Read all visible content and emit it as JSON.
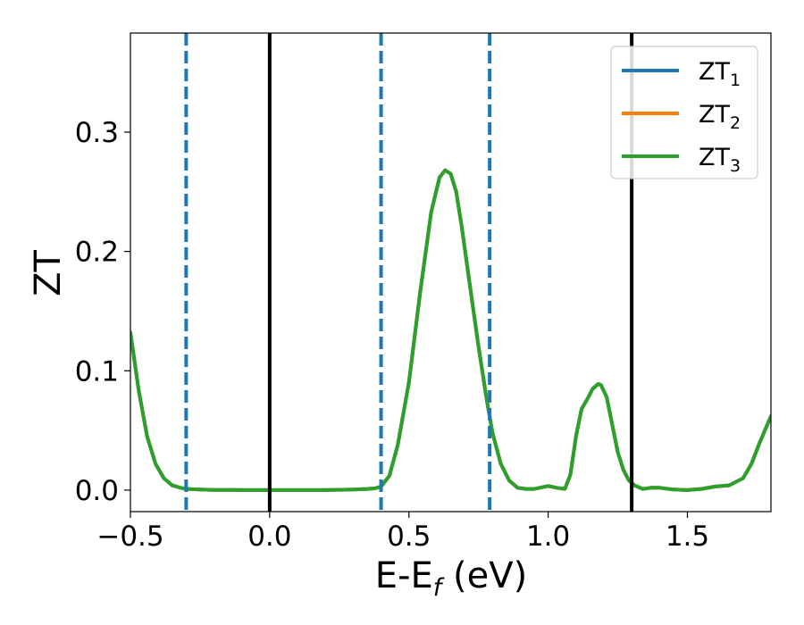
{
  "chart_data": {
    "type": "line",
    "title": "",
    "xlabel": {
      "main": "E-E",
      "sub": "f",
      "tail": " (eV)"
    },
    "ylabel": "ZT",
    "xlim": [
      -0.5,
      1.8
    ],
    "ylim": [
      -0.018,
      0.383
    ],
    "xticks": [
      {
        "value": -0.5,
        "label": "−0.5"
      },
      {
        "value": 0.0,
        "label": "0.0"
      },
      {
        "value": 0.5,
        "label": "0.5"
      },
      {
        "value": 1.0,
        "label": "1.0"
      },
      {
        "value": 1.5,
        "label": "1.5"
      }
    ],
    "yticks": [
      {
        "value": 0.0,
        "label": "0.0"
      },
      {
        "value": 0.1,
        "label": "0.1"
      },
      {
        "value": 0.2,
        "label": "0.2"
      },
      {
        "value": 0.3,
        "label": "0.3"
      }
    ],
    "grid": false,
    "legend_position": "top-right",
    "series": [
      {
        "name": "ZT",
        "sub": "1",
        "color": "#1f77b4",
        "x": [
          -0.5,
          -0.47,
          -0.44,
          -0.41,
          -0.38,
          -0.35,
          -0.32,
          -0.3,
          -0.25,
          -0.2,
          -0.1,
          0,
          0.1,
          0.2,
          0.3,
          0.35,
          0.38,
          0.4,
          0.43,
          0.46,
          0.5,
          0.54,
          0.58,
          0.61,
          0.63,
          0.65,
          0.67,
          0.69,
          0.72,
          0.75,
          0.78,
          0.8,
          0.83,
          0.86,
          0.89,
          0.92,
          0.95,
          0.97,
          1.0,
          1.03,
          1.06,
          1.08,
          1.1,
          1.12,
          1.14,
          1.16,
          1.18,
          1.19,
          1.21,
          1.23,
          1.25,
          1.27,
          1.29,
          1.31,
          1.34,
          1.37,
          1.4,
          1.45,
          1.5,
          1.55,
          1.6,
          1.65,
          1.7,
          1.73,
          1.76,
          1.8
        ],
        "y": [
          0.132,
          0.083,
          0.045,
          0.022,
          0.01,
          0.004,
          0.002,
          0.001,
          0.0005,
          0.0002,
          0,
          0,
          0,
          0,
          0.0005,
          0.001,
          0.0015,
          0.003,
          0.012,
          0.038,
          0.09,
          0.165,
          0.233,
          0.262,
          0.268,
          0.265,
          0.25,
          0.22,
          0.17,
          0.12,
          0.075,
          0.048,
          0.022,
          0.008,
          0.002,
          0.001,
          0.001,
          0.002,
          0.0035,
          0.002,
          0.001,
          0.013,
          0.045,
          0.068,
          0.076,
          0.085,
          0.089,
          0.088,
          0.078,
          0.055,
          0.032,
          0.017,
          0.008,
          0.004,
          0.001,
          0.002,
          0.002,
          0.0005,
          0,
          0.001,
          0.003,
          0.004,
          0.01,
          0.022,
          0.04,
          0.062
        ]
      },
      {
        "name": "ZT",
        "sub": "2",
        "color": "#ff7f0e",
        "x": [
          -0.5,
          -0.47,
          -0.44,
          -0.41,
          -0.38,
          -0.35,
          -0.32,
          -0.3,
          -0.25,
          -0.2,
          -0.1,
          0,
          0.1,
          0.2,
          0.3,
          0.35,
          0.38,
          0.4,
          0.43,
          0.46,
          0.5,
          0.54,
          0.58,
          0.61,
          0.63,
          0.65,
          0.67,
          0.69,
          0.72,
          0.75,
          0.78,
          0.8,
          0.83,
          0.86,
          0.89,
          0.92,
          0.95,
          0.97,
          1.0,
          1.03,
          1.06,
          1.08,
          1.1,
          1.12,
          1.14,
          1.16,
          1.18,
          1.19,
          1.21,
          1.23,
          1.25,
          1.27,
          1.29,
          1.31,
          1.34,
          1.37,
          1.4,
          1.45,
          1.5,
          1.55,
          1.6,
          1.65,
          1.7,
          1.73,
          1.76,
          1.8
        ],
        "y": [
          0.132,
          0.083,
          0.045,
          0.022,
          0.01,
          0.004,
          0.002,
          0.001,
          0.0005,
          0.0002,
          0,
          0,
          0,
          0,
          0.0005,
          0.001,
          0.0015,
          0.003,
          0.012,
          0.038,
          0.09,
          0.165,
          0.233,
          0.262,
          0.268,
          0.265,
          0.25,
          0.22,
          0.17,
          0.12,
          0.075,
          0.048,
          0.022,
          0.008,
          0.002,
          0.001,
          0.001,
          0.002,
          0.0035,
          0.002,
          0.001,
          0.013,
          0.045,
          0.068,
          0.076,
          0.085,
          0.089,
          0.088,
          0.078,
          0.055,
          0.032,
          0.017,
          0.008,
          0.004,
          0.001,
          0.002,
          0.002,
          0.0005,
          0,
          0.001,
          0.003,
          0.004,
          0.01,
          0.022,
          0.04,
          0.062
        ]
      },
      {
        "name": "ZT",
        "sub": "3",
        "color": "#2ca02c",
        "x": [
          -0.5,
          -0.47,
          -0.44,
          -0.41,
          -0.38,
          -0.35,
          -0.32,
          -0.3,
          -0.25,
          -0.2,
          -0.1,
          0,
          0.1,
          0.2,
          0.3,
          0.35,
          0.38,
          0.4,
          0.43,
          0.46,
          0.5,
          0.54,
          0.58,
          0.61,
          0.63,
          0.65,
          0.67,
          0.69,
          0.72,
          0.75,
          0.78,
          0.8,
          0.83,
          0.86,
          0.89,
          0.92,
          0.95,
          0.97,
          1.0,
          1.03,
          1.06,
          1.08,
          1.1,
          1.12,
          1.14,
          1.16,
          1.18,
          1.19,
          1.21,
          1.23,
          1.25,
          1.27,
          1.29,
          1.31,
          1.34,
          1.37,
          1.4,
          1.45,
          1.5,
          1.55,
          1.6,
          1.65,
          1.7,
          1.73,
          1.76,
          1.8
        ],
        "y": [
          0.132,
          0.083,
          0.045,
          0.022,
          0.01,
          0.004,
          0.002,
          0.001,
          0.0005,
          0.0002,
          0,
          0,
          0,
          0,
          0.0005,
          0.001,
          0.0015,
          0.003,
          0.012,
          0.038,
          0.09,
          0.165,
          0.233,
          0.262,
          0.268,
          0.265,
          0.25,
          0.22,
          0.17,
          0.12,
          0.075,
          0.048,
          0.022,
          0.008,
          0.002,
          0.001,
          0.001,
          0.002,
          0.0035,
          0.002,
          0.001,
          0.013,
          0.045,
          0.068,
          0.076,
          0.085,
          0.089,
          0.088,
          0.078,
          0.055,
          0.032,
          0.017,
          0.008,
          0.004,
          0.001,
          0.002,
          0.002,
          0.0005,
          0,
          0.001,
          0.003,
          0.004,
          0.01,
          0.022,
          0.04,
          0.062
        ]
      }
    ],
    "vlines": [
      {
        "x": 0.0,
        "style": "solid",
        "color": "#000000"
      },
      {
        "x": 1.3,
        "style": "solid",
        "color": "#000000"
      },
      {
        "x": -0.3,
        "style": "dashed",
        "color": "#1f77b4"
      },
      {
        "x": 0.4,
        "style": "dashed",
        "color": "#1f77b4"
      },
      {
        "x": 0.79,
        "style": "dashed",
        "color": "#1f77b4"
      }
    ]
  }
}
